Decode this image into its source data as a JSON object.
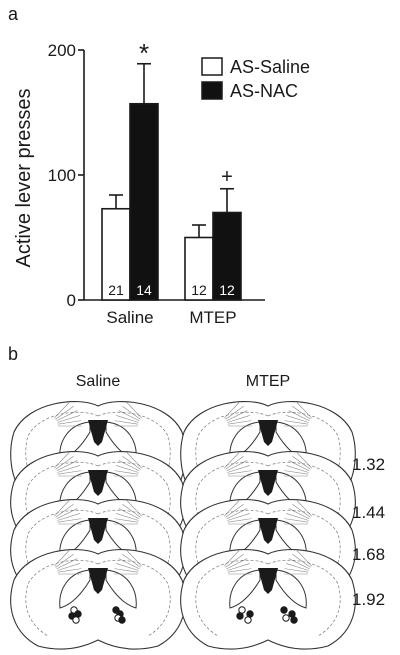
{
  "panels": {
    "a_label": "a",
    "b_label": "b"
  },
  "chart_data": {
    "type": "bar",
    "ylabel": "Active lever presses",
    "xlabel": "",
    "ylim": [
      0,
      200
    ],
    "yticks": [
      0,
      100,
      200
    ],
    "grid": false,
    "legend_placement": "top-right",
    "categories": [
      "Saline",
      "MTEP"
    ],
    "series": [
      {
        "name": "AS-Saline",
        "color": "#ffffff",
        "values": [
          73,
          50
        ],
        "errors": [
          11,
          10
        ],
        "n": [
          "21",
          "12"
        ]
      },
      {
        "name": "AS-NAC",
        "color": "#111111",
        "values": [
          157,
          70
        ],
        "errors": [
          32,
          19
        ],
        "n": [
          "14",
          "12"
        ]
      }
    ],
    "annotations": [
      {
        "series": "AS-NAC",
        "category": "Saline",
        "text": "*"
      },
      {
        "series": "AS-NAC",
        "category": "MTEP",
        "text": "+"
      }
    ]
  },
  "atlas": {
    "columns": [
      "Saline",
      "MTEP"
    ],
    "levels": [
      "1.32",
      "1.44",
      "1.68",
      "1.92"
    ]
  }
}
